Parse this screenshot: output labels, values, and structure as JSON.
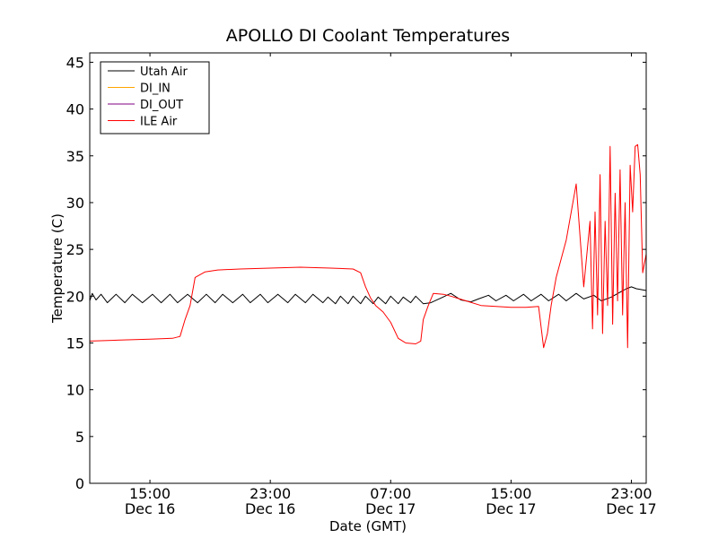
{
  "chart_data": {
    "type": "line",
    "title": "APOLLO DI Coolant Temperatures",
    "xlabel": "Date (GMT)",
    "ylabel": "Temperature (C)",
    "xlim": [
      "2023-12-16T11:00",
      "2023-12-17T23:59"
    ],
    "ylim": [
      0,
      46
    ],
    "yticks": [
      0,
      5,
      10,
      15,
      20,
      25,
      30,
      35,
      40,
      45
    ],
    "xticks": [
      {
        "t": "2023-12-16T15:00",
        "time": "15:00",
        "date": "Dec 16"
      },
      {
        "t": "2023-12-16T23:00",
        "time": "23:00",
        "date": "Dec 16"
      },
      {
        "t": "2023-12-17T07:00",
        "time": "07:00",
        "date": "Dec 17"
      },
      {
        "t": "2023-12-17T15:00",
        "time": "15:00",
        "date": "Dec 17"
      },
      {
        "t": "2023-12-17T23:00",
        "time": "23:00",
        "date": "Dec 17"
      }
    ],
    "grid": false,
    "legend_position": "top-left",
    "series": [
      {
        "name": "Utah Air",
        "color": "#000000",
        "x": [
          "2023-12-16T11:00",
          "2023-12-16T11:10",
          "2023-12-16T11:25",
          "2023-12-16T11:45",
          "2023-12-16T12:10",
          "2023-12-16T12:45",
          "2023-12-16T13:20",
          "2023-12-16T13:50",
          "2023-12-16T14:30",
          "2023-12-16T15:10",
          "2023-12-16T15:45",
          "2023-12-16T16:20",
          "2023-12-16T16:50",
          "2023-12-16T17:30",
          "2023-12-16T18:10",
          "2023-12-16T18:45",
          "2023-12-16T19:20",
          "2023-12-16T19:50",
          "2023-12-16T20:30",
          "2023-12-16T21:10",
          "2023-12-16T21:40",
          "2023-12-16T22:20",
          "2023-12-16T22:50",
          "2023-12-16T23:30",
          "2023-12-17T00:10",
          "2023-12-17T00:40",
          "2023-12-17T01:20",
          "2023-12-17T01:50",
          "2023-12-17T02:30",
          "2023-12-17T02:50",
          "2023-12-17T03:20",
          "2023-12-17T03:40",
          "2023-12-17T04:10",
          "2023-12-17T04:30",
          "2023-12-17T05:00",
          "2023-12-17T05:20",
          "2023-12-17T05:50",
          "2023-12-17T06:10",
          "2023-12-17T06:40",
          "2023-12-17T07:00",
          "2023-12-17T07:30",
          "2023-12-17T07:50",
          "2023-12-17T08:20",
          "2023-12-17T08:40",
          "2023-12-17T09:10",
          "2023-12-17T09:40",
          "2023-12-17T10:20",
          "2023-12-17T11:00",
          "2023-12-17T11:40",
          "2023-12-17T12:20",
          "2023-12-17T12:50",
          "2023-12-17T13:30",
          "2023-12-17T14:00",
          "2023-12-17T14:40",
          "2023-12-17T15:10",
          "2023-12-17T15:50",
          "2023-12-17T16:20",
          "2023-12-17T17:00",
          "2023-12-17T17:30",
          "2023-12-17T18:10",
          "2023-12-17T18:40",
          "2023-12-17T19:20",
          "2023-12-17T19:50",
          "2023-12-17T20:30",
          "2023-12-17T21:00",
          "2023-12-17T21:40",
          "2023-12-17T22:20",
          "2023-12-17T22:40",
          "2023-12-17T23:00",
          "2023-12-17T23:20",
          "2023-12-17T23:40",
          "2023-12-17T23:59"
        ],
        "y": [
          19.5,
          20.3,
          19.6,
          20.2,
          19.3,
          20.2,
          19.3,
          20.2,
          19.3,
          20.2,
          19.3,
          20.2,
          19.3,
          20.2,
          19.3,
          20.2,
          19.3,
          20.2,
          19.3,
          20.2,
          19.3,
          20.2,
          19.3,
          20.2,
          19.3,
          20.2,
          19.3,
          20.2,
          19.3,
          19.9,
          19.2,
          20.0,
          19.2,
          20.0,
          19.2,
          20.0,
          19.2,
          19.9,
          19.2,
          20.0,
          19.2,
          19.9,
          19.3,
          20.0,
          19.2,
          19.3,
          19.8,
          20.3,
          19.6,
          19.4,
          19.7,
          20.1,
          19.5,
          20.1,
          19.5,
          20.2,
          19.5,
          20.2,
          19.5,
          20.2,
          19.5,
          20.3,
          19.7,
          20.1,
          19.5,
          19.9,
          20.5,
          20.8,
          21.0,
          20.8,
          20.7,
          20.6
        ]
      },
      {
        "name": "DI_IN",
        "color": "#ffa500",
        "x": [],
        "y": []
      },
      {
        "name": "DI_OUT",
        "color": "#800080",
        "x": [],
        "y": []
      },
      {
        "name": "ILE Air",
        "color": "#ff0000",
        "x": [
          "2023-12-16T11:00",
          "2023-12-16T13:00",
          "2023-12-16T15:00",
          "2023-12-16T16:30",
          "2023-12-16T17:00",
          "2023-12-16T17:20",
          "2023-12-16T17:40",
          "2023-12-16T18:00",
          "2023-12-16T18:40",
          "2023-12-16T19:30",
          "2023-12-16T21:00",
          "2023-12-16T23:00",
          "2023-12-17T01:00",
          "2023-12-17T03:00",
          "2023-12-17T04:30",
          "2023-12-17T05:00",
          "2023-12-17T05:20",
          "2023-12-17T05:40",
          "2023-12-17T06:00",
          "2023-12-17T06:30",
          "2023-12-17T07:00",
          "2023-12-17T07:30",
          "2023-12-17T08:00",
          "2023-12-17T08:40",
          "2023-12-17T09:00",
          "2023-12-17T09:10",
          "2023-12-17T09:30",
          "2023-12-17T09:50",
          "2023-12-17T10:30",
          "2023-12-17T11:00",
          "2023-12-17T12:00",
          "2023-12-17T13:00",
          "2023-12-17T15:00",
          "2023-12-17T16:00",
          "2023-12-17T16:50",
          "2023-12-17T17:10",
          "2023-12-17T17:25",
          "2023-12-17T17:40",
          "2023-12-17T18:00",
          "2023-12-17T18:40",
          "2023-12-17T19:20",
          "2023-12-17T19:50",
          "2023-12-17T20:15",
          "2023-12-17T20:25",
          "2023-12-17T20:35",
          "2023-12-17T20:45",
          "2023-12-17T20:55",
          "2023-12-17T21:05",
          "2023-12-17T21:15",
          "2023-12-17T21:25",
          "2023-12-17T21:35",
          "2023-12-17T21:45",
          "2023-12-17T21:55",
          "2023-12-17T22:05",
          "2023-12-17T22:15",
          "2023-12-17T22:25",
          "2023-12-17T22:35",
          "2023-12-17T22:45",
          "2023-12-17T22:55",
          "2023-12-17T23:05",
          "2023-12-17T23:15",
          "2023-12-17T23:25",
          "2023-12-17T23:35",
          "2023-12-17T23:45",
          "2023-12-17T23:59"
        ],
        "y": [
          15.2,
          15.3,
          15.4,
          15.5,
          15.7,
          17.5,
          19.0,
          22.0,
          22.6,
          22.8,
          22.9,
          23.0,
          23.1,
          23.0,
          22.9,
          22.5,
          21.0,
          19.8,
          19.0,
          18.3,
          17.2,
          15.5,
          15.0,
          14.9,
          15.2,
          17.5,
          19.0,
          20.3,
          20.2,
          20.0,
          19.5,
          19.0,
          18.8,
          18.8,
          18.9,
          14.5,
          16.0,
          19.0,
          22.0,
          26.0,
          32.0,
          21.0,
          28.0,
          16.5,
          29.0,
          18.0,
          33.0,
          16.0,
          28.0,
          19.0,
          36.0,
          17.0,
          31.0,
          19.5,
          33.5,
          18.0,
          30.0,
          14.5,
          34.0,
          29.0,
          36.0,
          36.2,
          33.0,
          22.5,
          24.5
        ]
      }
    ]
  }
}
